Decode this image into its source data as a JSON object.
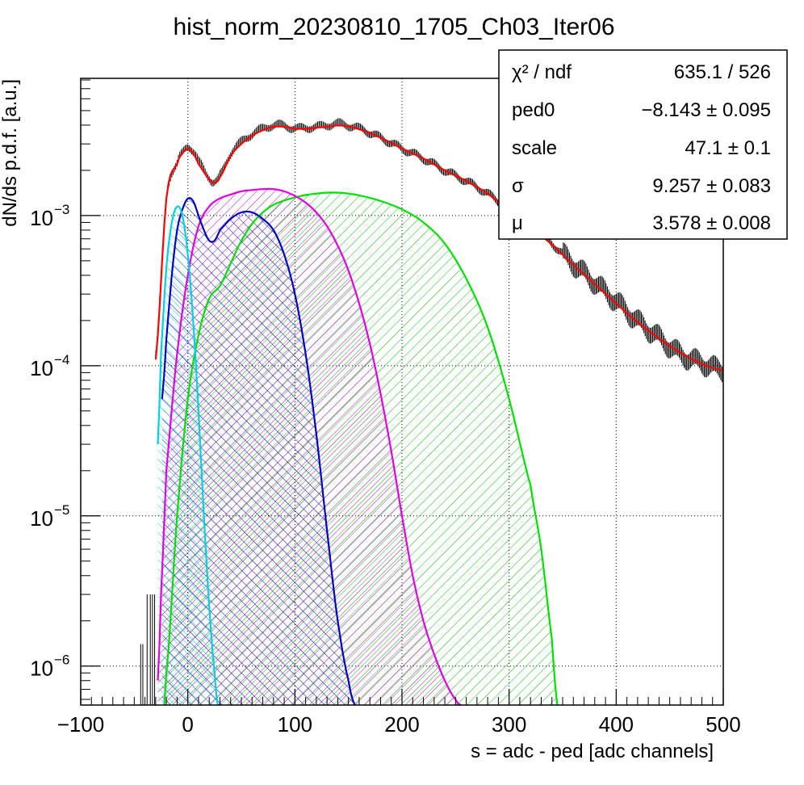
{
  "chart_data": {
    "type": "line",
    "title": "hist_norm_20230810_1705_Ch03_Iter06",
    "xlabel": "s = adc - ped [adc channels]",
    "ylabel": "dN/ds p.d.f. [a.u.]",
    "xlim": [
      -100,
      500
    ],
    "ylim": [
      5.5e-07,
      0.0082
    ],
    "y_scale": "log",
    "grid": true,
    "x_ticks": [
      {
        "value": -100,
        "label": "−100"
      },
      {
        "value": 0,
        "label": "0"
      },
      {
        "value": 100,
        "label": "100"
      },
      {
        "value": 200,
        "label": "200"
      },
      {
        "value": 300,
        "label": "300"
      },
      {
        "value": 400,
        "label": "400"
      },
      {
        "value": 500,
        "label": "500"
      }
    ],
    "y_ticks": [
      {
        "value": 1e-06,
        "base": "10",
        "exp": "−6"
      },
      {
        "value": 1e-05,
        "base": "10",
        "exp": "−5"
      },
      {
        "value": 0.0001,
        "base": "10",
        "exp": "−4"
      },
      {
        "value": 0.001,
        "base": "10",
        "exp": "−3"
      }
    ],
    "stats_box": {
      "position": "top-right",
      "rows": [
        {
          "name": "χ² / ndf",
          "value": "635.1 / 526"
        },
        {
          "name": "ped0",
          "value": "−8.143 ± 0.095"
        },
        {
          "name": "scale",
          "value": "47.1 ± 0.1"
        },
        {
          "name": "σ",
          "value": "9.257 ± 0.083"
        },
        {
          "name": "μ",
          "value": "3.578 ± 0.008"
        }
      ]
    },
    "series": [
      {
        "key": "data",
        "style": "histogram-errorbars",
        "color": "#000000",
        "x": [
          -30,
          -20,
          -10,
          -5,
          0,
          5,
          10,
          20,
          25,
          30,
          40,
          50,
          60,
          70,
          80,
          90,
          100,
          110,
          120,
          130,
          140,
          150,
          160,
          180,
          200,
          220,
          240,
          260,
          280,
          300,
          320,
          340,
          360,
          380,
          400,
          420,
          440,
          460,
          480,
          500
        ],
        "y": [
          0.00012,
          0.0013,
          0.0022,
          0.0026,
          0.0029,
          0.0027,
          0.0023,
          0.0018,
          0.00168,
          0.00185,
          0.0026,
          0.0031,
          0.0035,
          0.0038,
          0.004,
          0.00398,
          0.0038,
          0.00385,
          0.0039,
          0.004,
          0.0041,
          0.00398,
          0.0038,
          0.0033,
          0.0028,
          0.0024,
          0.002,
          0.0017,
          0.0014,
          0.0011,
          0.00085,
          0.00065,
          0.00048,
          0.00036,
          0.00027,
          0.0002,
          0.000155,
          0.00012,
          0.000105,
          9.4e-05
        ]
      },
      {
        "key": "total_fit",
        "style": "line",
        "color": "#ff0000",
        "x": [
          -30,
          -20,
          -10,
          -5,
          0,
          5,
          10,
          20,
          25,
          30,
          40,
          50,
          60,
          70,
          80,
          90,
          100,
          110,
          120,
          130,
          140,
          150,
          160,
          180,
          200,
          220,
          240,
          260,
          280,
          300,
          320,
          340,
          360,
          380,
          400,
          420,
          440,
          460,
          480,
          500
        ],
        "y": [
          0.00011,
          0.0013,
          0.0022,
          0.0026,
          0.0028,
          0.0026,
          0.0022,
          0.00175,
          0.00165,
          0.0018,
          0.0025,
          0.003,
          0.0034,
          0.0037,
          0.0039,
          0.0039,
          0.0038,
          0.00378,
          0.00385,
          0.0039,
          0.00398,
          0.00392,
          0.00375,
          0.0033,
          0.0028,
          0.0024,
          0.002,
          0.0017,
          0.0014,
          0.00108,
          0.00084,
          0.00064,
          0.00047,
          0.00035,
          0.00026,
          0.000195,
          0.000152,
          0.000122,
          0.000103,
          9.3e-05
        ]
      },
      {
        "key": "pedestal",
        "style": "filled-line",
        "color": "#00d0e0",
        "x": [
          -28,
          -25,
          -20,
          -15,
          -10,
          -5,
          0,
          5,
          10,
          15,
          20,
          25,
          28
        ],
        "y": [
          3e-05,
          0.00012,
          0.00045,
          0.0009,
          0.00115,
          0.001,
          0.00055,
          0.0002,
          5e-05,
          1e-05,
          2.5e-06,
          9e-07,
          5.5e-07
        ]
      },
      {
        "key": "one_pe",
        "style": "filled-line",
        "color": "#0000c0",
        "x": [
          -24,
          -20,
          -15,
          -10,
          -5,
          0,
          5,
          10,
          15,
          20,
          25,
          30,
          40,
          50,
          60,
          70,
          80,
          90,
          100,
          110,
          120,
          130,
          140,
          150,
          156
        ],
        "y": [
          6e-05,
          0.00015,
          0.0004,
          0.0008,
          0.0011,
          0.0013,
          0.00125,
          0.001,
          0.0008,
          0.00068,
          0.00068,
          0.0008,
          0.00095,
          0.00105,
          0.00105,
          0.00095,
          0.0008,
          0.00055,
          0.0003,
          0.00012,
          3.5e-05,
          8e-06,
          2e-06,
          8e-07,
          5.5e-07
        ]
      },
      {
        "key": "two_pe",
        "style": "filled-line",
        "color": "#e000e0",
        "x": [
          -28,
          -25,
          -20,
          -10,
          0,
          10,
          20,
          30,
          40,
          50,
          60,
          70,
          80,
          90,
          100,
          110,
          120,
          130,
          140,
          150,
          160,
          170,
          180,
          190,
          200,
          210,
          220,
          230,
          240,
          250,
          255
        ],
        "y": [
          8e-07,
          3e-06,
          2e-05,
          0.00012,
          0.0004,
          0.00085,
          0.00115,
          0.0013,
          0.00138,
          0.00145,
          0.00148,
          0.0015,
          0.0015,
          0.00145,
          0.00135,
          0.00122,
          0.00105,
          0.00085,
          0.00063,
          0.00043,
          0.00026,
          0.00014,
          6.5e-05,
          2.7e-05,
          1e-05,
          4e-06,
          2e-06,
          1.2e-06,
          8e-07,
          6e-07,
          5.5e-07
        ]
      },
      {
        "key": "three_pe",
        "style": "filled-line",
        "color": "#00e000",
        "x": [
          -22,
          -20,
          -10,
          0,
          10,
          20,
          30,
          40,
          50,
          60,
          70,
          80,
          90,
          100,
          110,
          120,
          130,
          140,
          150,
          160,
          180,
          200,
          220,
          240,
          260,
          280,
          300,
          320,
          330,
          340,
          345
        ],
        "y": [
          5.5e-07,
          9e-07,
          1e-05,
          6e-05,
          0.00016,
          0.00028,
          0.00034,
          0.00048,
          0.00068,
          0.00088,
          0.00105,
          0.00118,
          0.00126,
          0.00132,
          0.00137,
          0.0014,
          0.00142,
          0.00142,
          0.0014,
          0.00136,
          0.00125,
          0.0011,
          0.0009,
          0.00065,
          0.00038,
          0.00018,
          6e-05,
          1.6e-05,
          6e-06,
          1.5e-06,
          5.5e-07
        ]
      }
    ]
  }
}
